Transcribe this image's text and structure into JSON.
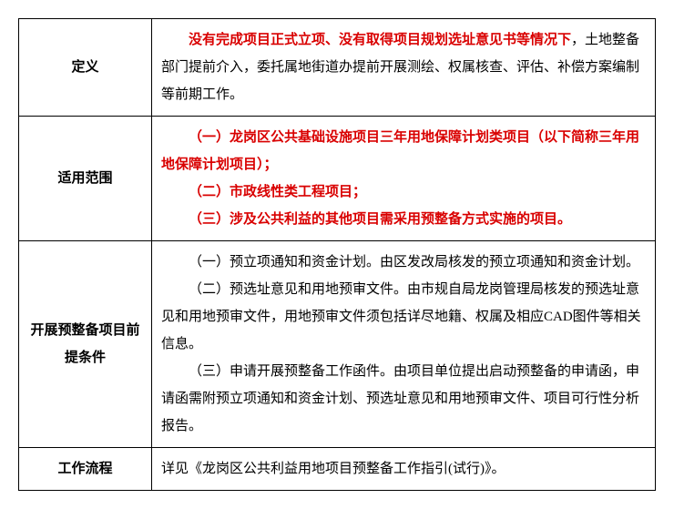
{
  "rows": [
    {
      "label": "定义",
      "html": "<p class=\"para\"><span class=\"red\">没有完成项目正式立项、没有取得项目规划选址意见书等情况下</span>，土地整备部门提前介入，委托属地街道办提前开展测绘、权属核查、评估、补偿方案编制等前期工作。</p>"
    },
    {
      "label": "适用范围",
      "html": "<p class=\"red-para\">（一）龙岗区公共基础设施项目三年用地保障计划类项目（以下简称三年用地保障计划项目）；</p><p class=\"red-para\">（二）市政线性类工程项目；</p><p class=\"red-para\">（三）涉及公共利益的其他项目需采用预整备方式实施的项目。</p>"
    },
    {
      "label": "开展预整备项目前提条件",
      "html": "<p class=\"para\">（一）预立项通知和资金计划。由区发改局核发的预立项通知和资金计划。</p><p class=\"para\">（二）预选址意见和用地预审文件。由市规自局龙岗管理局核发的预选址意见和用地预审文件，用地预审文件须包括详尽地籍、权属及相应CAD图件等相关信息。</p><p class=\"para\">（三）申请开展预整备工作函件。由项目单位提出启动预整备的申请函，申请函需附预立项通知和资金计划、预选址意见和用地预审文件、项目可行性分析报告。</p>"
    },
    {
      "label": "工作流程",
      "html": "<p class=\"para\" style=\"text-indent:0\">详见《龙岗区公共利益用地项目预整备工作指引(试行)》。</p>"
    }
  ]
}
